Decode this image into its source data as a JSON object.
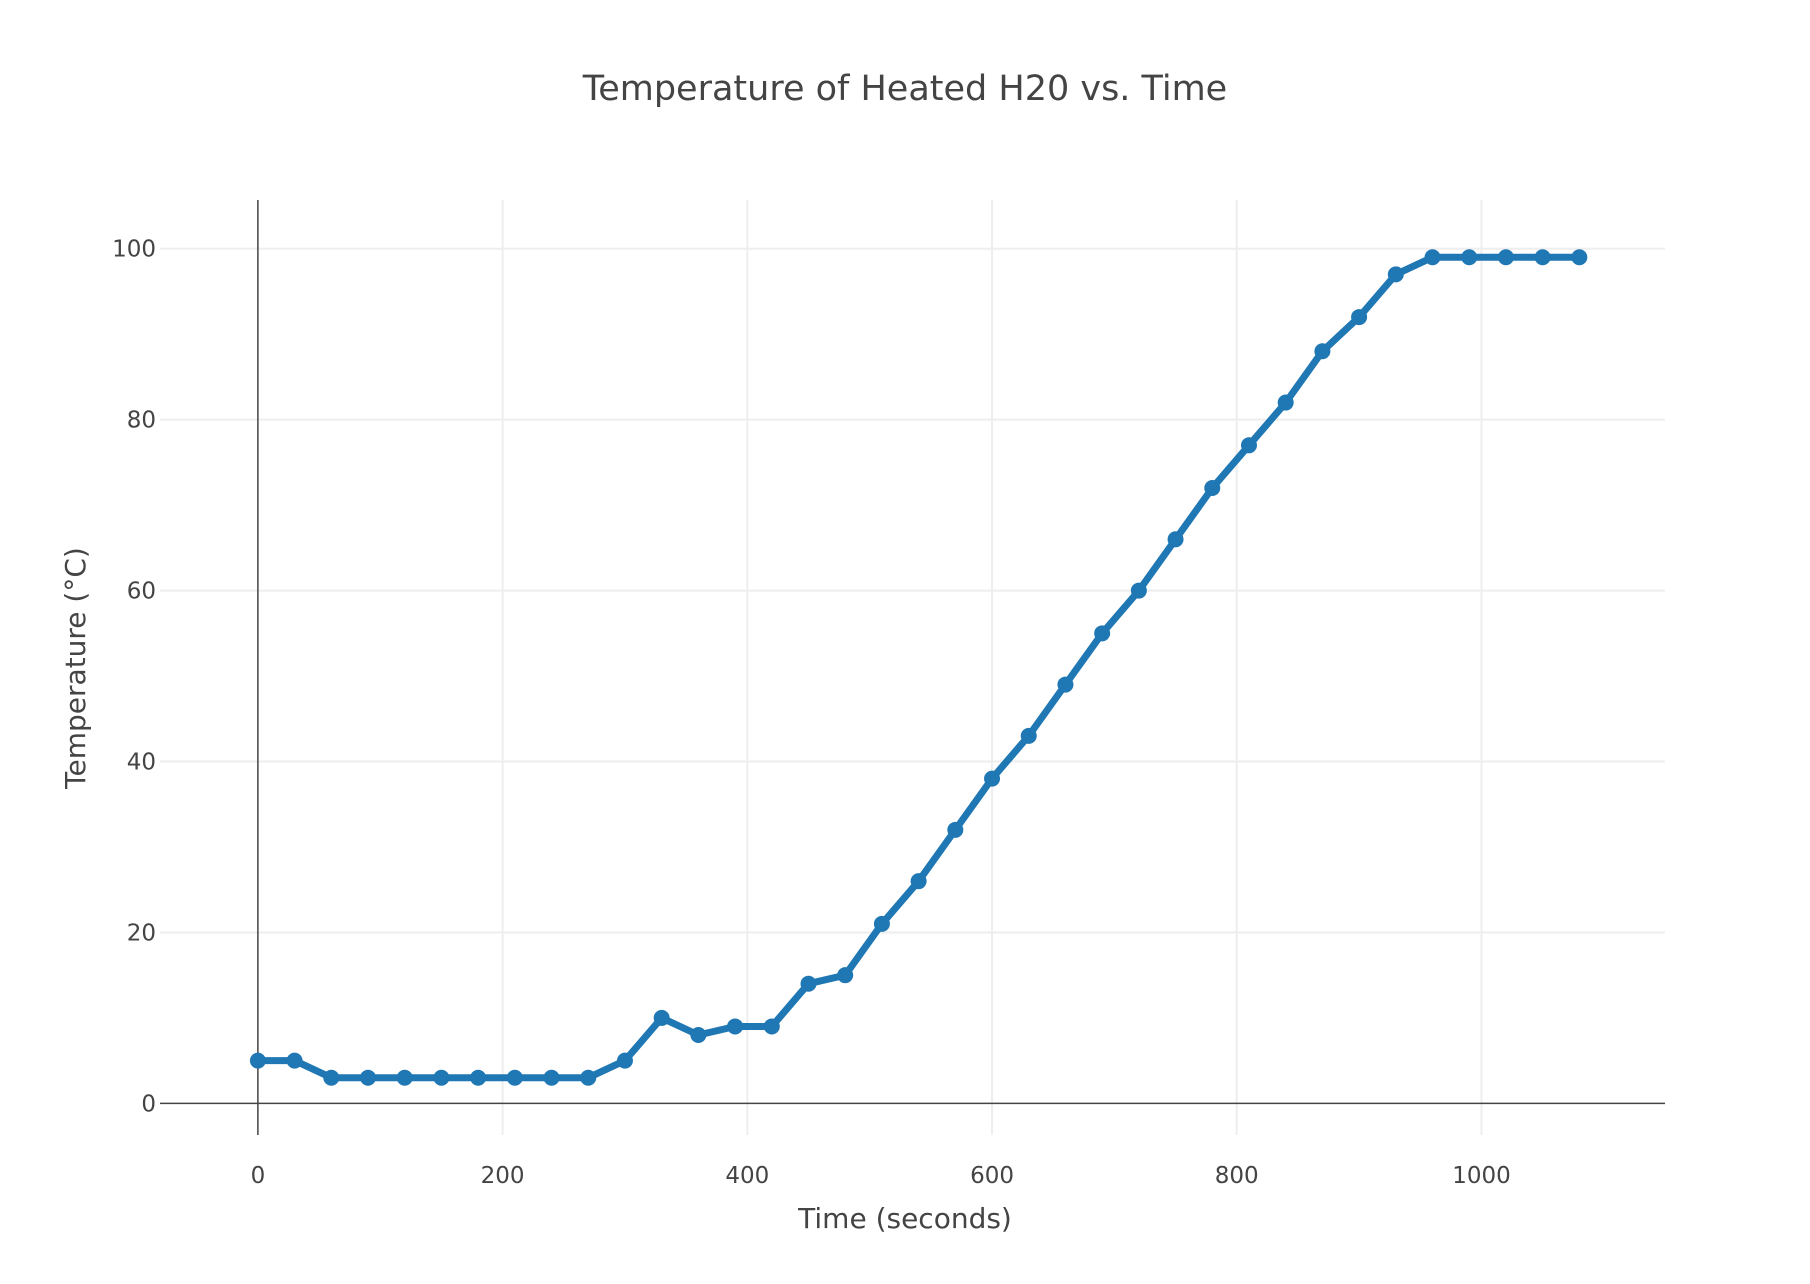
{
  "chart_data": {
    "type": "line",
    "title": "Temperature of Heated H20 vs. Time",
    "xlabel": "Time (seconds)",
    "ylabel": "Temperature (°C)",
    "xlim": [
      -80,
      1150
    ],
    "ylim": [
      -3.7,
      105.7
    ],
    "x_ticks": [
      0,
      200,
      400,
      600,
      800,
      1000
    ],
    "y_ticks": [
      0,
      20,
      40,
      60,
      80,
      100
    ],
    "grid": true,
    "legend": "none",
    "series": [
      {
        "color": "#1f77b4",
        "mode": "lines+markers",
        "x": [
          0,
          30,
          60,
          90,
          120,
          150,
          180,
          210,
          240,
          270,
          300,
          330,
          360,
          390,
          420,
          450,
          480,
          510,
          540,
          570,
          600,
          630,
          660,
          690,
          720,
          750,
          780,
          810,
          840,
          870,
          900,
          930,
          960,
          990,
          1020,
          1050,
          1080
        ],
        "y": [
          5,
          5,
          3,
          3,
          3,
          3,
          3,
          3,
          3,
          3,
          5,
          10,
          8,
          9,
          9,
          14,
          15,
          21,
          26,
          32,
          38,
          43,
          49,
          55,
          60,
          66,
          72,
          77,
          82,
          88,
          92,
          97,
          99,
          99,
          99,
          99,
          99
        ]
      }
    ]
  }
}
